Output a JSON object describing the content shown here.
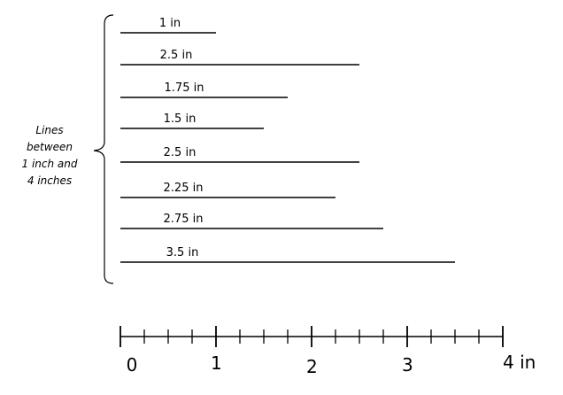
{
  "brace_label": [
    "Lines",
    "between",
    "1 inch and",
    "4 inches"
  ],
  "lines": [
    {
      "label": "1 in",
      "length": 1
    },
    {
      "label": "2.5 in",
      "length": 2.5
    },
    {
      "label": "1.75 in",
      "length": 1.75
    },
    {
      "label": "1.5 in",
      "length": 1.5
    },
    {
      "label": "2.5 in",
      "length": 2.5
    },
    {
      "label": "2.25 in",
      "length": 2.25
    },
    {
      "label": "2.75 in",
      "length": 2.75
    },
    {
      "label": "3.5 in",
      "length": 3.5
    }
  ],
  "ruler": {
    "min": 0,
    "max": 4,
    "tick_step": 0.25,
    "labels": [
      "0",
      "1",
      "2",
      "3",
      "4 in"
    ]
  }
}
